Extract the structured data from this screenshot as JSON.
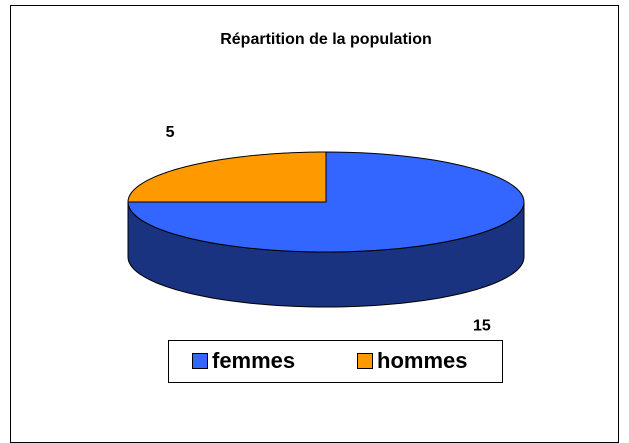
{
  "chart_data": {
    "type": "pie",
    "title": "Répartition de la population",
    "categories": [
      "femmes",
      "hommes"
    ],
    "values": [
      15,
      5
    ],
    "colors": [
      "#3366ff",
      "#ff9900"
    ],
    "legend": "bottom"
  }
}
